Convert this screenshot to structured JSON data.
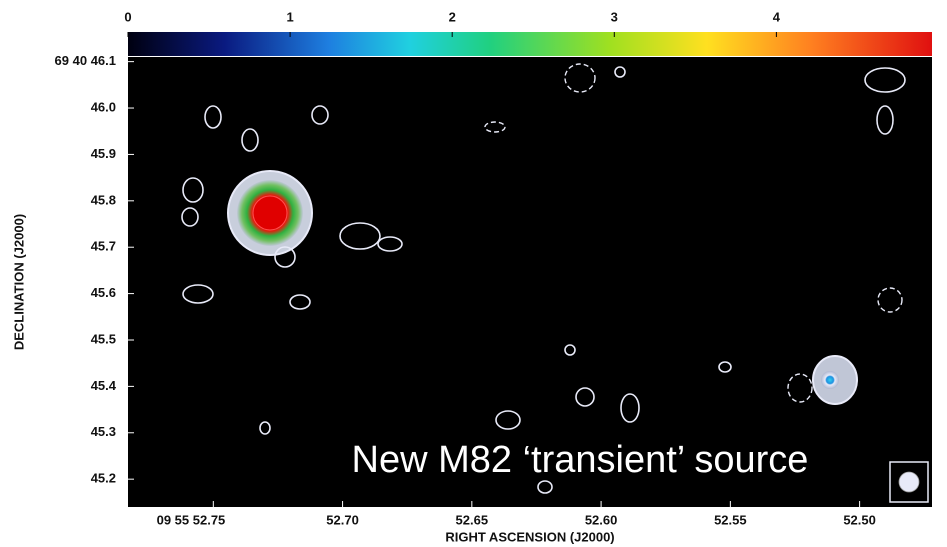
{
  "chart_data": {
    "type": "image",
    "x_label": "RIGHT ASCENSION (J2000)",
    "y_label": "DECLINATION (J2000)",
    "annotation": "New M82 ‘transient’ source",
    "xlim": [
      52.783,
      52.472
    ],
    "xticks": [
      {
        "value": 52.75,
        "label": "09 55 52.75"
      },
      {
        "value": 52.7,
        "label": "52.70"
      },
      52.65,
      {
        "value": 52.6,
        "label": "52.60"
      },
      52.55,
      {
        "value": 52.5,
        "label": "52.50"
      }
    ],
    "ylim": [
      45.14,
      46.11
    ],
    "yticks": [
      {
        "value": 46.1,
        "label": "69 40 46.1"
      },
      {
        "value": 46.0,
        "label": "46.0"
      },
      45.9,
      45.8,
      45.7,
      45.6,
      45.5,
      45.4,
      45.3,
      45.2
    ],
    "colorbar_lim": [
      0,
      4.96
    ],
    "colorbar_ticks": [
      0,
      1,
      2,
      3,
      4
    ]
  }
}
